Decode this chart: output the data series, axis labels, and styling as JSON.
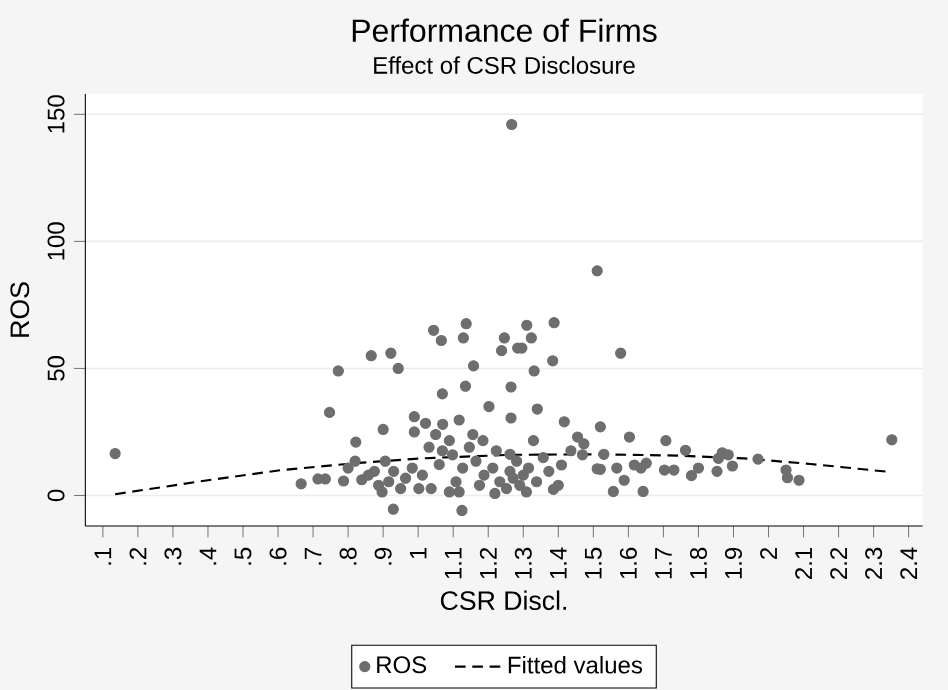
{
  "chart_data": {
    "type": "scatter",
    "title": "Performance of Firms",
    "subtitle": "Effect of CSR Disclosure",
    "xlabel": "CSR Discl.",
    "ylabel": "ROS",
    "xlim": [
      0.05,
      2.44
    ],
    "ylim": [
      -12,
      158
    ],
    "xticks": [
      {
        "value": 0.1,
        "label": ".1"
      },
      {
        "value": 0.2,
        "label": ".2"
      },
      {
        "value": 0.3,
        "label": ".3"
      },
      {
        "value": 0.4,
        "label": ".4"
      },
      {
        "value": 0.5,
        "label": ".5"
      },
      {
        "value": 0.6,
        "label": ".6"
      },
      {
        "value": 0.7,
        "label": ".7"
      },
      {
        "value": 0.8,
        "label": ".8"
      },
      {
        "value": 0.9,
        "label": ".9"
      },
      1,
      1.1,
      1.2,
      1.3,
      1.4,
      1.5,
      1.6,
      1.7,
      1.8,
      1.9,
      2,
      2.1,
      2.2,
      2.3,
      2.4
    ],
    "yticks": [
      0,
      50,
      100,
      150
    ],
    "grid": "y",
    "legend": "bottom",
    "series": [
      {
        "name": "ROS",
        "color": "#6e6e6e",
        "marker": "circle",
        "x": [
          0.135,
          1.267,
          1.511,
          1.578,
          1.388,
          1.31,
          1.323,
          1.246,
          1.137,
          1.129,
          1.044,
          1.066,
          1.238,
          1.284,
          1.296,
          0.866,
          0.922,
          0.943,
          0.772,
          1.384,
          1.158,
          1.331,
          1.135,
          1.265,
          1.069,
          1.202,
          1.34,
          0.747,
          1.265,
          1.417,
          0.989,
          0.9,
          0.822,
          1.52,
          1.603,
          1.707,
          2.352,
          1.97,
          1.763,
          1.868,
          0.666,
          0.714,
          0.735,
          0.787,
          0.839,
          0.929,
          1.125,
          1.557,
          1.642,
          2.054,
          2.087,
          2.05,
          1.897,
          1.853,
          1.78,
          1.703,
          1.73,
          1.8,
          1.617,
          1.567,
          1.511,
          1.469,
          1.455,
          1.409,
          1.4,
          1.386,
          1.588,
          1.636,
          1.651,
          1.857,
          1.885,
          0.8,
          0.82,
          0.858,
          0.887,
          0.897,
          0.916,
          0.93,
          0.95,
          0.964,
          0.983,
          1.002,
          1.012,
          0.989,
          1.031,
          1.05,
          1.07,
          1.089,
          1.098,
          1.108,
          1.117,
          1.127,
          1.146,
          1.156,
          1.165,
          1.175,
          1.188,
          1.213,
          1.233,
          1.252,
          1.262,
          1.271,
          1.281,
          1.29,
          1.3,
          1.315,
          1.329,
          1.338,
          1.357,
          1.373,
          1.262,
          1.223,
          1.185,
          1.117,
          1.021,
          1.069,
          1.06,
          1.037,
          1.089,
          1.219,
          1.309,
          0.906,
          0.875,
          1.436,
          1.473,
          1.53,
          1.52
        ],
        "values": [
          16.5,
          146,
          88.4,
          56,
          68,
          67,
          62,
          62,
          67.6,
          62,
          65,
          61,
          57,
          58,
          58,
          55,
          56,
          50,
          49,
          53,
          51,
          49,
          43,
          42.7,
          40,
          35,
          34,
          32.7,
          30.5,
          29,
          31,
          26,
          21,
          27,
          23,
          21.6,
          21.9,
          14.3,
          17.8,
          16.8,
          4.6,
          6.5,
          6.5,
          5.7,
          6.2,
          -5.4,
          -5.9,
          1.6,
          1.6,
          7,
          6,
          10,
          11.6,
          9.5,
          7.8,
          10,
          10,
          10.8,
          12,
          10.8,
          10.5,
          16,
          23,
          12,
          4,
          2.4,
          6,
          10.8,
          12.7,
          14.6,
          16,
          10.8,
          13.5,
          8,
          4,
          1.4,
          5.4,
          9.5,
          2.7,
          6.8,
          10.8,
          2.7,
          8,
          25,
          19,
          24,
          28,
          21.6,
          16,
          5.4,
          1.4,
          10.8,
          19,
          24,
          13.5,
          4,
          8,
          10.8,
          5.4,
          2.7,
          9.5,
          6.8,
          13.5,
          4,
          8,
          10.8,
          21.6,
          5.4,
          14.9,
          9.5,
          16.2,
          17.6,
          21.6,
          29.7,
          28.4,
          17.6,
          12.2,
          2.7,
          1.4,
          0.8,
          1.4,
          13.5,
          9.5,
          17.6,
          20.3,
          16.2,
          10.3
        ]
      },
      {
        "name": "Fitted values",
        "type": "line",
        "color": "#000000",
        "marker": "none",
        "line_style": "dashed",
        "x": [
          0.135,
          0.4,
          0.61,
          0.82,
          1.01,
          1.26,
          1.51,
          1.74,
          1.93,
          2.12,
          2.35
        ],
        "values": [
          0.5,
          6,
          10,
          12.7,
          14.6,
          16,
          16.2,
          15.7,
          14.6,
          12.4,
          9.2
        ]
      }
    ]
  }
}
